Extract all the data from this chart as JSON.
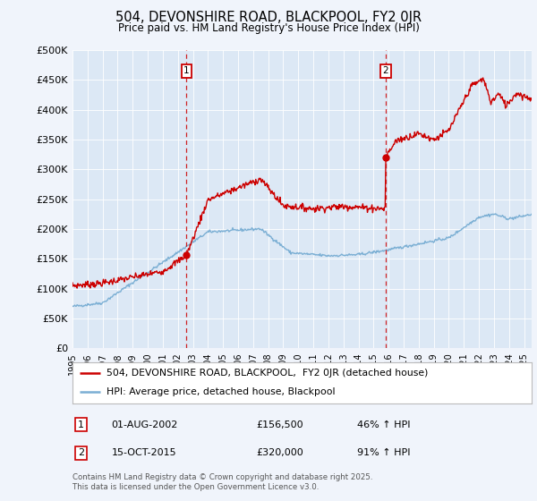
{
  "title": "504, DEVONSHIRE ROAD, BLACKPOOL, FY2 0JR",
  "subtitle": "Price paid vs. HM Land Registry's House Price Index (HPI)",
  "bg_color": "#f0f4fb",
  "plot_bg_color": "#dce8f5",
  "ylim": [
    0,
    500000
  ],
  "yticks": [
    0,
    50000,
    100000,
    150000,
    200000,
    250000,
    300000,
    350000,
    400000,
    450000,
    500000
  ],
  "ytick_labels": [
    "£0",
    "£50K",
    "£100K",
    "£150K",
    "£200K",
    "£250K",
    "£300K",
    "£350K",
    "£400K",
    "£450K",
    "£500K"
  ],
  "red_color": "#cc0000",
  "blue_color": "#7bafd4",
  "vline_color": "#cc0000",
  "marker1_year": 2002.58,
  "marker1_value": 156500,
  "marker1_label": "1",
  "marker1_date": "01-AUG-2002",
  "marker1_price": "£156,500",
  "marker1_hpi": "46% ↑ HPI",
  "marker2_year": 2015.79,
  "marker2_value": 320000,
  "marker2_label": "2",
  "marker2_date": "15-OCT-2015",
  "marker2_price": "£320,000",
  "marker2_hpi": "91% ↑ HPI",
  "legend_entry1": "504, DEVONSHIRE ROAD, BLACKPOOL,  FY2 0JR (detached house)",
  "legend_entry2": "HPI: Average price, detached house, Blackpool",
  "footer": "Contains HM Land Registry data © Crown copyright and database right 2025.\nThis data is licensed under the Open Government Licence v3.0.",
  "xmin": 1995,
  "xmax": 2025.5
}
